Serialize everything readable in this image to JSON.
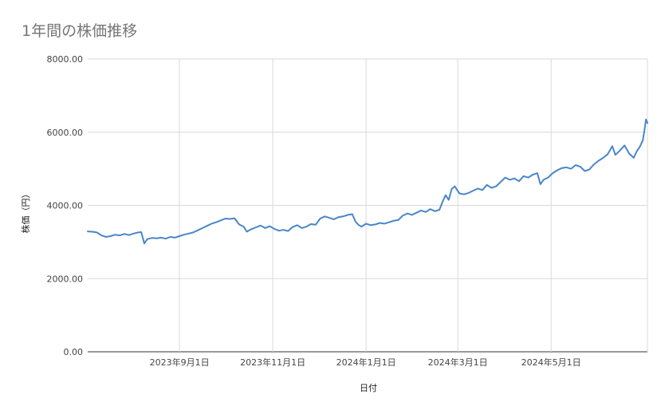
{
  "chart_data": {
    "type": "line",
    "title": "1年間の株価推移",
    "xlabel": "日付",
    "ylabel": "株価（円）",
    "ylim": [
      0,
      8000
    ],
    "xlim": [
      "2023-07-03",
      "2024-07-03"
    ],
    "grid": true,
    "line_color": "#4a86c8",
    "y_ticks": [
      "0.00",
      "2000.00",
      "4000.00",
      "6000.00",
      "8000.00"
    ],
    "x_ticks": [
      {
        "date": "2023-09-01",
        "label": "2023年9月1日"
      },
      {
        "date": "2023-11-01",
        "label": "2023年11月1日"
      },
      {
        "date": "2024-01-01",
        "label": "2024年1月1日"
      },
      {
        "date": "2024-03-01",
        "label": "2024年3月1日"
      },
      {
        "date": "2024-05-01",
        "label": "2024年5月1日"
      }
    ],
    "series": [
      {
        "points": [
          [
            "2023-07-03",
            3290
          ],
          [
            "2023-07-06",
            3280
          ],
          [
            "2023-07-09",
            3260
          ],
          [
            "2023-07-12",
            3180
          ],
          [
            "2023-07-15",
            3140
          ],
          [
            "2023-07-18",
            3160
          ],
          [
            "2023-07-21",
            3200
          ],
          [
            "2023-07-24",
            3180
          ],
          [
            "2023-07-27",
            3220
          ],
          [
            "2023-07-30",
            3190
          ],
          [
            "2023-08-02",
            3230
          ],
          [
            "2023-08-05",
            3260
          ],
          [
            "2023-08-07",
            3270
          ],
          [
            "2023-08-09",
            2960
          ],
          [
            "2023-08-11",
            3080
          ],
          [
            "2023-08-14",
            3110
          ],
          [
            "2023-08-17",
            3100
          ],
          [
            "2023-08-20",
            3120
          ],
          [
            "2023-08-23",
            3090
          ],
          [
            "2023-08-26",
            3140
          ],
          [
            "2023-08-29",
            3120
          ],
          [
            "2023-09-01",
            3160
          ],
          [
            "2023-09-04",
            3200
          ],
          [
            "2023-09-07",
            3230
          ],
          [
            "2023-09-10",
            3260
          ],
          [
            "2023-09-13",
            3320
          ],
          [
            "2023-09-16",
            3380
          ],
          [
            "2023-09-19",
            3440
          ],
          [
            "2023-09-22",
            3500
          ],
          [
            "2023-09-25",
            3540
          ],
          [
            "2023-09-28",
            3590
          ],
          [
            "2023-10-01",
            3640
          ],
          [
            "2023-10-04",
            3630
          ],
          [
            "2023-10-07",
            3650
          ],
          [
            "2023-10-10",
            3480
          ],
          [
            "2023-10-13",
            3420
          ],
          [
            "2023-10-15",
            3280
          ],
          [
            "2023-10-18",
            3350
          ],
          [
            "2023-10-21",
            3400
          ],
          [
            "2023-10-24",
            3450
          ],
          [
            "2023-10-27",
            3380
          ],
          [
            "2023-10-30",
            3430
          ],
          [
            "2023-11-02",
            3360
          ],
          [
            "2023-11-05",
            3310
          ],
          [
            "2023-11-08",
            3330
          ],
          [
            "2023-11-11",
            3300
          ],
          [
            "2023-11-14",
            3410
          ],
          [
            "2023-11-17",
            3460
          ],
          [
            "2023-11-20",
            3380
          ],
          [
            "2023-11-23",
            3420
          ],
          [
            "2023-11-26",
            3490
          ],
          [
            "2023-11-29",
            3470
          ],
          [
            "2023-12-02",
            3640
          ],
          [
            "2023-12-05",
            3700
          ],
          [
            "2023-12-08",
            3660
          ],
          [
            "2023-12-11",
            3620
          ],
          [
            "2023-12-14",
            3680
          ],
          [
            "2023-12-17",
            3700
          ],
          [
            "2023-12-20",
            3740
          ],
          [
            "2023-12-23",
            3760
          ],
          [
            "2023-12-25",
            3560
          ],
          [
            "2023-12-27",
            3470
          ],
          [
            "2023-12-29",
            3420
          ],
          [
            "2024-01-01",
            3500
          ],
          [
            "2024-01-04",
            3460
          ],
          [
            "2024-01-07",
            3480
          ],
          [
            "2024-01-10",
            3520
          ],
          [
            "2024-01-13",
            3500
          ],
          [
            "2024-01-16",
            3540
          ],
          [
            "2024-01-19",
            3580
          ],
          [
            "2024-01-22",
            3600
          ],
          [
            "2024-01-25",
            3720
          ],
          [
            "2024-01-28",
            3780
          ],
          [
            "2024-01-31",
            3740
          ],
          [
            "2024-02-03",
            3800
          ],
          [
            "2024-02-06",
            3860
          ],
          [
            "2024-02-09",
            3820
          ],
          [
            "2024-02-12",
            3900
          ],
          [
            "2024-02-15",
            3840
          ],
          [
            "2024-02-18",
            3880
          ],
          [
            "2024-02-20",
            4100
          ],
          [
            "2024-02-22",
            4280
          ],
          [
            "2024-02-24",
            4150
          ],
          [
            "2024-02-26",
            4450
          ],
          [
            "2024-02-28",
            4520
          ],
          [
            "2024-03-02",
            4330
          ],
          [
            "2024-03-05",
            4300
          ],
          [
            "2024-03-08",
            4340
          ],
          [
            "2024-03-11",
            4400
          ],
          [
            "2024-03-14",
            4460
          ],
          [
            "2024-03-17",
            4420
          ],
          [
            "2024-03-20",
            4560
          ],
          [
            "2024-03-23",
            4480
          ],
          [
            "2024-03-26",
            4520
          ],
          [
            "2024-03-29",
            4640
          ],
          [
            "2024-04-01",
            4760
          ],
          [
            "2024-04-04",
            4700
          ],
          [
            "2024-04-07",
            4740
          ],
          [
            "2024-04-10",
            4660
          ],
          [
            "2024-04-13",
            4800
          ],
          [
            "2024-04-16",
            4760
          ],
          [
            "2024-04-19",
            4840
          ],
          [
            "2024-04-22",
            4880
          ],
          [
            "2024-04-24",
            4580
          ],
          [
            "2024-04-26",
            4700
          ],
          [
            "2024-04-29",
            4760
          ],
          [
            "2024-05-02",
            4880
          ],
          [
            "2024-05-05",
            4960
          ],
          [
            "2024-05-08",
            5020
          ],
          [
            "2024-05-11",
            5040
          ],
          [
            "2024-05-14",
            5000
          ],
          [
            "2024-05-17",
            5100
          ],
          [
            "2024-05-20",
            5060
          ],
          [
            "2024-05-23",
            4940
          ],
          [
            "2024-05-26",
            4980
          ],
          [
            "2024-05-29",
            5120
          ],
          [
            "2024-06-01",
            5220
          ],
          [
            "2024-06-04",
            5300
          ],
          [
            "2024-06-07",
            5400
          ],
          [
            "2024-06-10",
            5620
          ],
          [
            "2024-06-12",
            5380
          ],
          [
            "2024-06-15",
            5500
          ],
          [
            "2024-06-18",
            5640
          ],
          [
            "2024-06-21",
            5420
          ],
          [
            "2024-06-24",
            5300
          ],
          [
            "2024-06-26",
            5480
          ],
          [
            "2024-06-28",
            5600
          ],
          [
            "2024-06-30",
            5780
          ],
          [
            "2024-07-01",
            6050
          ],
          [
            "2024-07-02",
            6350
          ],
          [
            "2024-07-03",
            6250
          ]
        ]
      }
    ]
  }
}
